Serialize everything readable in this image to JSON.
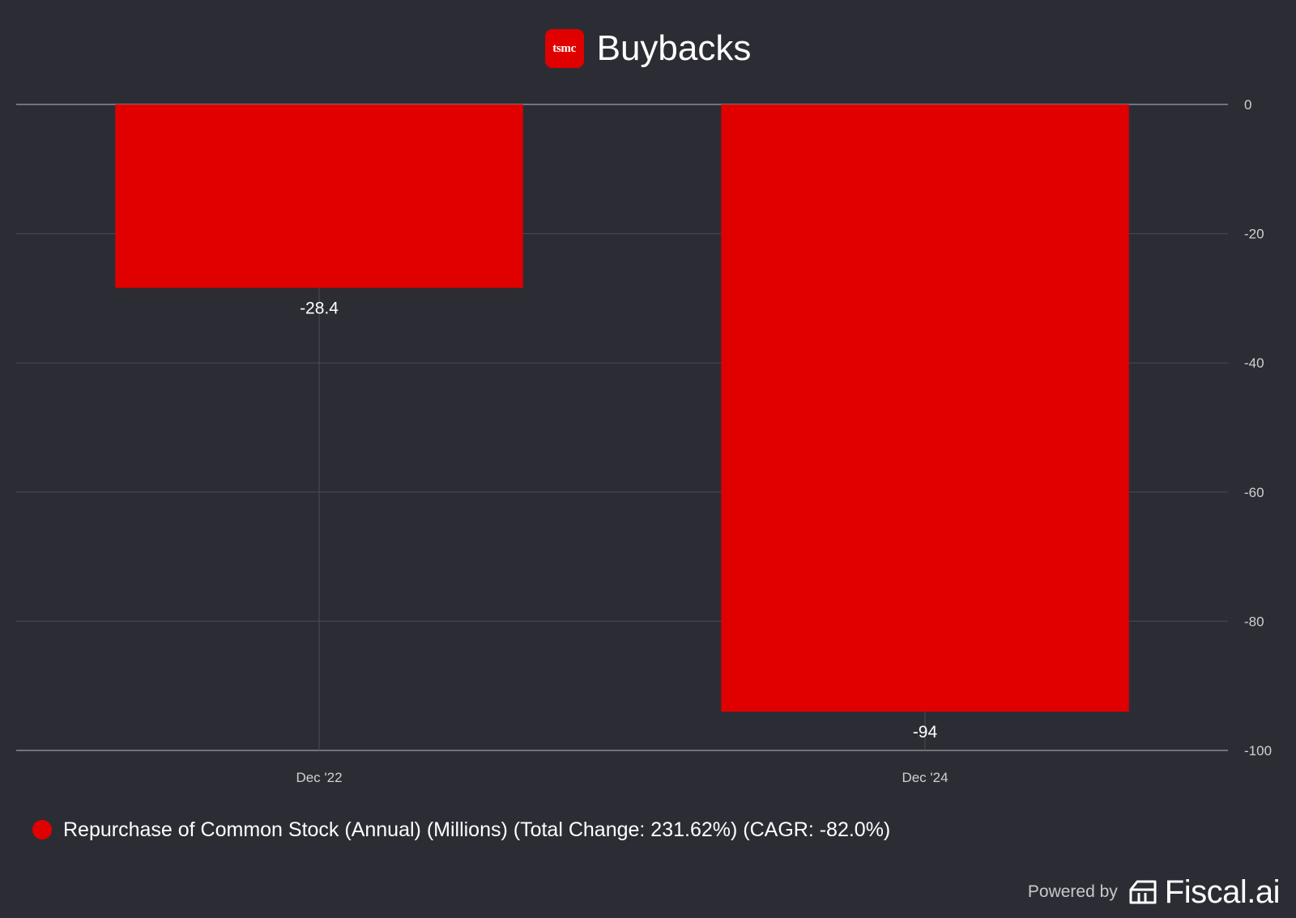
{
  "header": {
    "logo_text": "tsmc",
    "title": "Buybacks"
  },
  "chart_data": {
    "type": "bar",
    "categories": [
      "Dec '22",
      "Dec '24"
    ],
    "series": [
      {
        "name": "Repurchase of Common Stock (Annual) (Millions) (Total Change: 231.62%) (CAGR: -82.0%)",
        "values": [
          -28.4,
          -94
        ],
        "color": "#e10000"
      }
    ],
    "data_labels": [
      "-28.4",
      "-94"
    ],
    "y_ticks": [
      0,
      -20,
      -40,
      -60,
      -80,
      -100
    ],
    "ylim": [
      -100,
      0
    ],
    "y_axis_side": "right",
    "grid": true,
    "legend_position": "bottom-left"
  },
  "legend": {
    "label": "Repurchase of Common Stock (Annual) (Millions) (Total Change: 231.62%) (CAGR: -82.0%)",
    "color": "#e10000"
  },
  "footer": {
    "powered_by": "Powered by",
    "brand": "Fiscal.ai"
  }
}
